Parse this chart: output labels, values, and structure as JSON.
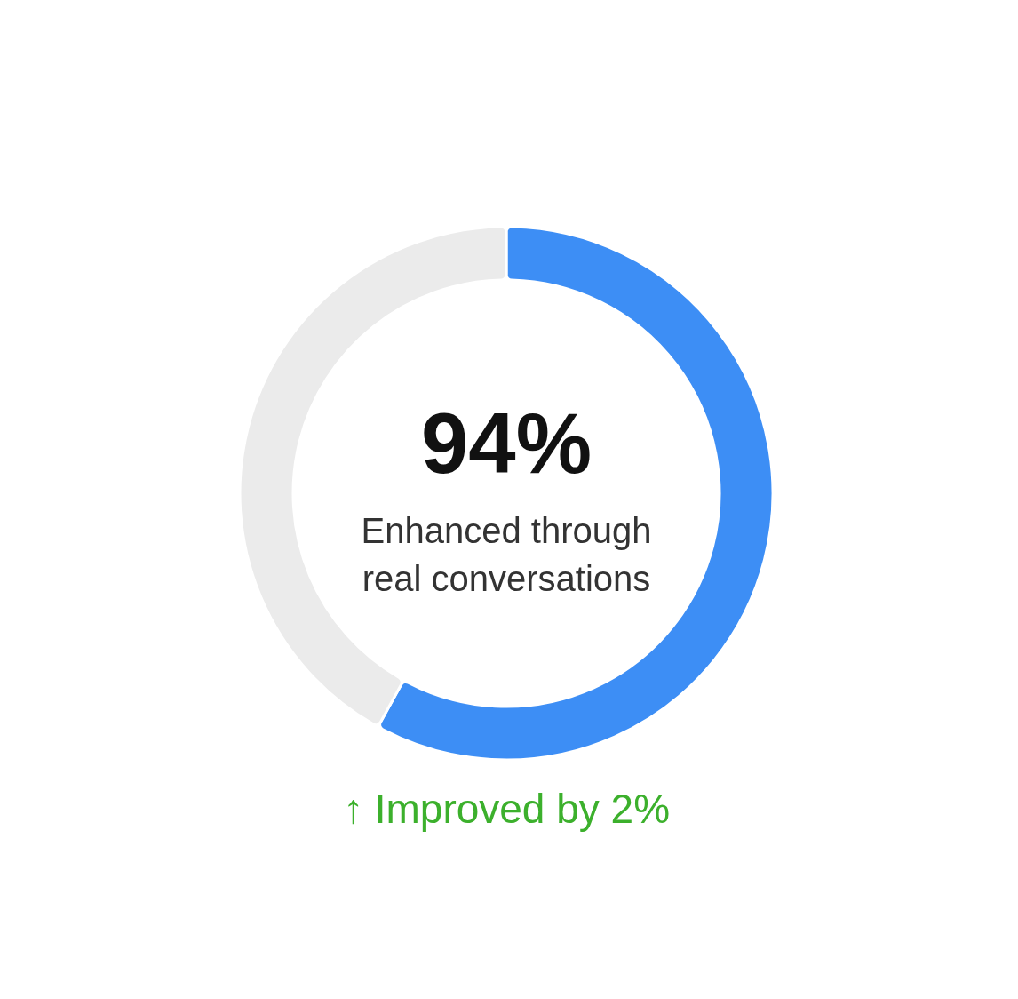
{
  "chart_data": {
    "type": "donut",
    "categories": [
      null,
      null
    ],
    "values": [
      58,
      42
    ],
    "colors": [
      "#3d8ef5",
      "#ebebeb"
    ],
    "title": "94%",
    "annotations": [
      "Enhanced through real conversations",
      "↑ Improved by 2%"
    ]
  }
}
